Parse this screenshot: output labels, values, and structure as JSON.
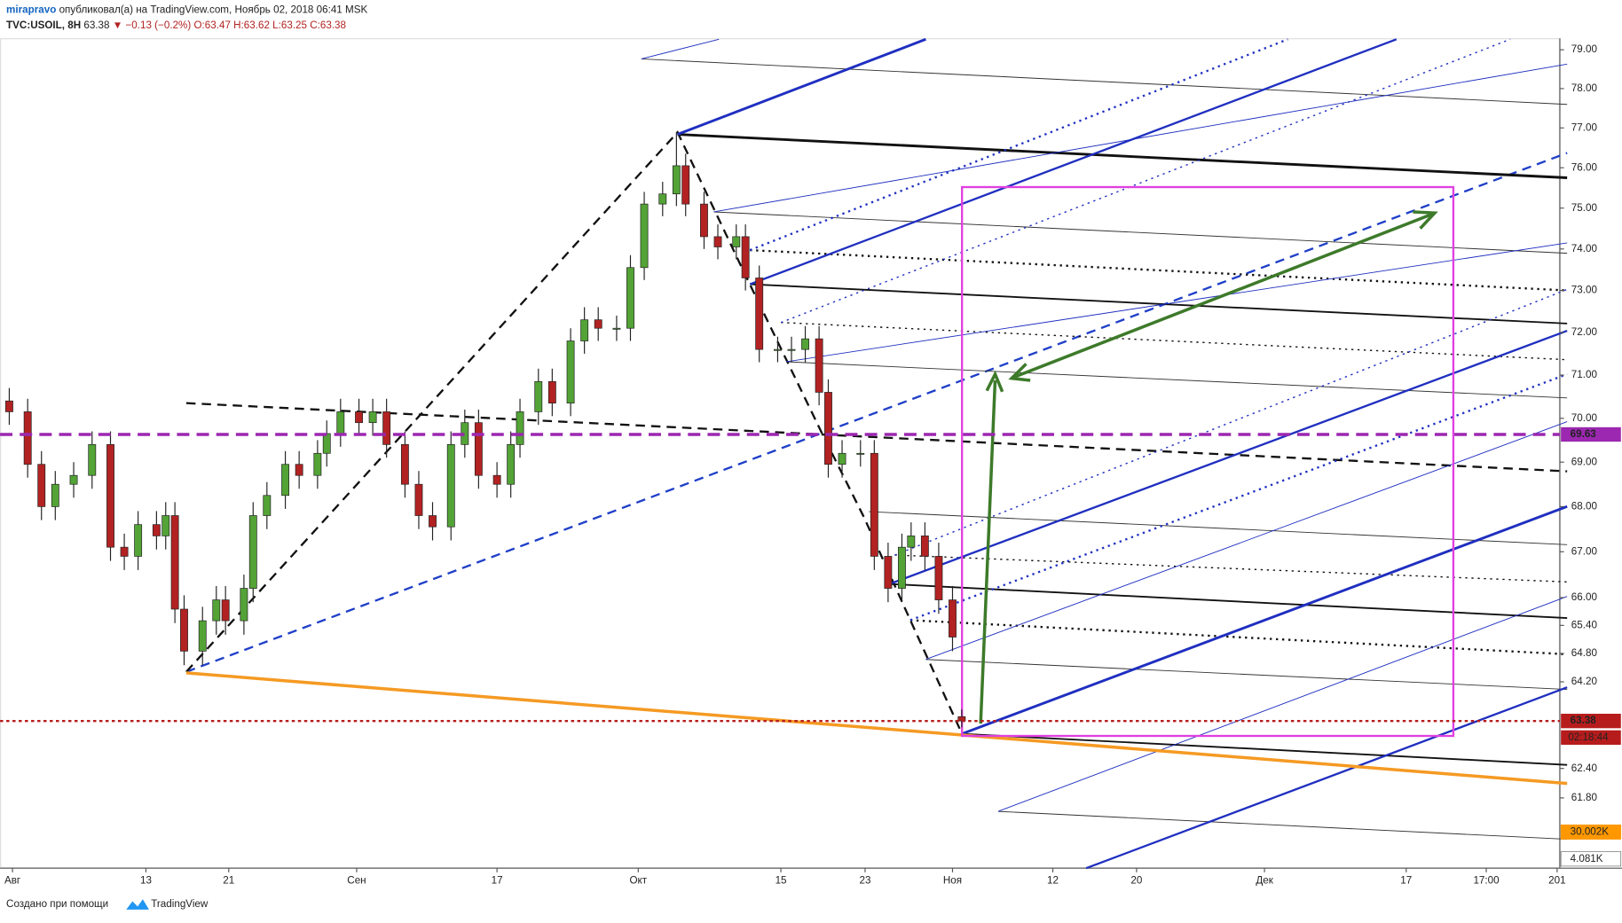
{
  "header": {
    "author": "mirapravo",
    "published": "опубликовал(а) на TradingView.com, Ноябрь 02, 2018 06:41 MSK",
    "symbol": "TVC:USOIL, 8H",
    "last": "63.38",
    "change": "▼ −0.13 (−0.2%)",
    "ohlc": "O:63.47 H:63.62 L:63.25 C:63.38"
  },
  "footer": {
    "created": "Создано при помощи",
    "brand": "TradingView"
  },
  "chart_data": {
    "type": "candlestick",
    "log": true,
    "x": [
      2,
      6,
      9,
      12,
      16,
      20,
      24,
      27,
      30,
      34,
      36,
      38,
      40,
      44,
      47,
      49,
      53,
      55,
      58,
      62,
      65,
      69,
      71,
      74,
      78,
      81,
      84,
      88,
      91,
      94,
      98,
      101,
      104,
      108,
      111,
      113,
      117,
      120,
      124,
      127,
      130,
      134,
      137,
      140,
      144,
      147,
      149,
      153,
      156,
      160,
      162,
      165,
      169,
      172,
      175,
      178,
      180,
      183,
      187,
      190,
      193,
      196,
      198,
      201,
      204,
      207,
      209
    ],
    "open": [
      70.4,
      70.15,
      68.95,
      68.0,
      68.5,
      68.7,
      69.4,
      67.1,
      66.9,
      67.6,
      67.35,
      67.8,
      65.75,
      64.85,
      65.5,
      65.95,
      65.5,
      66.2,
      67.8,
      68.25,
      68.95,
      68.7,
      69.2,
      69.65,
      70.15,
      69.9,
      70.15,
      69.4,
      68.5,
      67.8,
      67.55,
      69.4,
      69.9,
      68.7,
      68.5,
      69.4,
      70.15,
      70.85,
      70.35,
      71.8,
      72.3,
      72.1,
      72.1,
      73.55,
      75.1,
      75.35,
      76.05,
      75.1,
      74.3,
      74.05,
      74.3,
      73.3,
      71.6,
      71.6,
      71.6,
      71.85,
      70.6,
      68.95,
      69.2,
      69.2,
      66.9,
      66.2,
      67.1,
      67.35,
      66.9,
      65.95,
      63.47
    ],
    "high": [
      70.7,
      70.45,
      69.25,
      68.8,
      69.0,
      69.7,
      69.7,
      67.4,
      67.9,
      67.9,
      68.1,
      68.1,
      66.05,
      65.8,
      66.25,
      66.25,
      66.5,
      68.1,
      68.55,
      69.25,
      69.25,
      69.5,
      69.95,
      70.45,
      70.45,
      70.45,
      70.45,
      69.7,
      68.8,
      68.1,
      69.7,
      70.2,
      70.2,
      69.0,
      69.7,
      70.45,
      71.15,
      71.15,
      72.1,
      72.6,
      72.6,
      72.4,
      73.85,
      75.4,
      75.65,
      76.9,
      76.35,
      75.4,
      74.6,
      74.6,
      74.6,
      73.6,
      71.9,
      71.9,
      72.15,
      72.15,
      70.9,
      69.5,
      69.5,
      69.5,
      67.2,
      67.4,
      67.65,
      67.65,
      67.2,
      66.25,
      63.62
    ],
    "low": [
      69.85,
      68.65,
      67.7,
      67.7,
      68.2,
      68.4,
      66.8,
      66.6,
      66.6,
      67.05,
      67.05,
      65.45,
      64.55,
      64.55,
      65.2,
      65.2,
      65.2,
      65.9,
      67.5,
      67.95,
      68.4,
      68.4,
      68.9,
      69.35,
      69.6,
      69.6,
      69.1,
      68.2,
      67.5,
      67.25,
      67.25,
      69.1,
      68.4,
      68.2,
      68.2,
      69.1,
      69.85,
      70.05,
      70.05,
      71.5,
      71.8,
      71.8,
      71.8,
      73.25,
      74.8,
      75.05,
      74.8,
      74.0,
      73.75,
      73.75,
      73.0,
      71.3,
      71.3,
      71.3,
      71.3,
      70.3,
      68.65,
      68.65,
      68.9,
      66.6,
      65.9,
      65.9,
      66.8,
      66.6,
      65.65,
      64.85,
      63.25
    ],
    "close": [
      70.15,
      68.95,
      68.0,
      68.5,
      68.7,
      69.4,
      67.1,
      66.9,
      67.6,
      67.35,
      67.8,
      65.75,
      64.85,
      65.5,
      65.95,
      65.5,
      66.2,
      67.8,
      68.25,
      68.95,
      68.7,
      69.2,
      69.65,
      70.15,
      69.9,
      70.15,
      69.4,
      68.5,
      67.8,
      67.55,
      69.4,
      69.9,
      68.7,
      68.5,
      69.4,
      70.15,
      70.85,
      70.35,
      71.8,
      72.3,
      72.1,
      72.1,
      73.55,
      75.1,
      75.35,
      76.05,
      75.1,
      74.3,
      74.05,
      74.3,
      73.3,
      71.6,
      71.6,
      71.6,
      71.85,
      70.6,
      68.95,
      69.2,
      69.2,
      66.9,
      66.2,
      67.1,
      67.35,
      66.9,
      65.95,
      65.15,
      63.38
    ],
    "up_color": "#53a336",
    "down_color": "#b22222",
    "xlim": [
      0,
      339
    ],
    "xticks": [
      {
        "value": 2.7,
        "label": "Авг"
      },
      {
        "value": 31.7,
        "label": "13"
      },
      {
        "value": 49.7,
        "label": "21"
      },
      {
        "value": 77.5,
        "label": "Сен"
      },
      {
        "value": 108,
        "label": "17"
      },
      {
        "value": 138.7,
        "label": "Окт"
      },
      {
        "value": 169.7,
        "label": "15"
      },
      {
        "value": 188,
        "label": "23"
      },
      {
        "value": 207,
        "label": "Ноя"
      },
      {
        "value": 228.8,
        "label": "12"
      },
      {
        "value": 247,
        "label": "20"
      },
      {
        "value": 274.8,
        "label": "Дек"
      },
      {
        "value": 305.6,
        "label": "17"
      },
      {
        "value": 323,
        "label": "17:00"
      },
      {
        "value": 338.4,
        "label": "201"
      }
    ],
    "ylim": [
      60.39,
      79.3
    ],
    "yticks": [
      {
        "value": 79,
        "label": "79.00"
      },
      {
        "value": 78,
        "label": "78.00"
      },
      {
        "value": 77,
        "label": "77.00"
      },
      {
        "value": 76,
        "label": "76.00"
      },
      {
        "value": 75,
        "label": "75.00"
      },
      {
        "value": 74,
        "label": "74.00"
      },
      {
        "value": 73,
        "label": "73.00"
      },
      {
        "value": 72,
        "label": "72.00"
      },
      {
        "value": 71,
        "label": "71.00"
      },
      {
        "value": 70,
        "label": "70.00"
      },
      {
        "value": 69,
        "label": "69.00"
      },
      {
        "value": 68,
        "label": "68.00"
      },
      {
        "value": 67,
        "label": "67.00"
      },
      {
        "value": 66,
        "label": "66.00"
      },
      {
        "value": 65.4,
        "label": "65.40"
      },
      {
        "value": 64.8,
        "label": "64.80"
      },
      {
        "value": 64.2,
        "label": "64.20"
      },
      {
        "value": 62.4,
        "label": "62.40"
      },
      {
        "value": 61.8,
        "label": "61.80"
      }
    ],
    "levels": [
      {
        "value": 69.63,
        "label": "69.63",
        "color": "#9c27b0"
      },
      {
        "value": 63.38,
        "label": "63.38",
        "color": "#b71c1c"
      }
    ],
    "countdown": "02:18:44",
    "volume_labels": [
      {
        "label": "30.002K",
        "color": "#ff9800"
      },
      {
        "label": "4.081K",
        "color": "#555555"
      }
    ]
  }
}
